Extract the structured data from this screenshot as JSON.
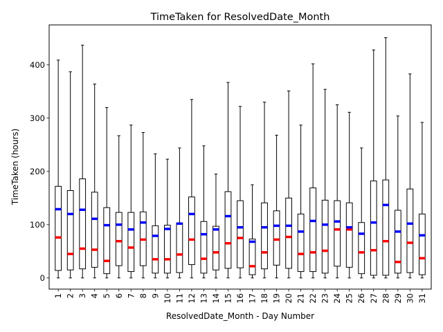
{
  "chart_data": {
    "type": "box",
    "title": "TimeTaken for ResolvedDate_Month",
    "xlabel": "ResolvedDate_Month - Day Number",
    "ylabel": "TimeTaken (hours)",
    "ylim": [
      -21,
      475
    ],
    "yticks": [
      0,
      100,
      200,
      300,
      400
    ],
    "grid": false,
    "median_color": "#ff0000",
    "mean_color": "#0000ff",
    "categories": [
      "1",
      "2",
      "3",
      "4",
      "5",
      "6",
      "7",
      "8",
      "9",
      "10",
      "11",
      "12",
      "13",
      "14",
      "15",
      "16",
      "17",
      "18",
      "19",
      "20",
      "21",
      "22",
      "23",
      "24",
      "25",
      "26",
      "27",
      "28",
      "29",
      "30",
      "31"
    ],
    "boxes": [
      {
        "whislo": 0,
        "q1": 14,
        "med": 76,
        "mean": 129,
        "q3": 172,
        "whishi": 409
      },
      {
        "whislo": 0,
        "q1": 15,
        "med": 45,
        "mean": 120,
        "q3": 164,
        "whishi": 387
      },
      {
        "whislo": 0,
        "q1": 17,
        "med": 55,
        "mean": 128,
        "q3": 186,
        "whishi": 437
      },
      {
        "whislo": 0,
        "q1": 20,
        "med": 53,
        "mean": 111,
        "q3": 161,
        "whishi": 364
      },
      {
        "whislo": 0,
        "q1": 8,
        "med": 32,
        "mean": 99,
        "q3": 132,
        "whishi": 320
      },
      {
        "whislo": 0,
        "q1": 23,
        "med": 69,
        "mean": 100,
        "q3": 123,
        "whishi": 267
      },
      {
        "whislo": 0,
        "q1": 12,
        "med": 57,
        "mean": 91,
        "q3": 123,
        "whishi": 287
      },
      {
        "whislo": 0,
        "q1": 23,
        "med": 72,
        "mean": 104,
        "q3": 124,
        "whishi": 273
      },
      {
        "whislo": 0,
        "q1": 9,
        "med": 35,
        "mean": 79,
        "q3": 98,
        "whishi": 233
      },
      {
        "whislo": 0,
        "q1": 9,
        "med": 35,
        "mean": 92,
        "q3": 99,
        "whishi": 223
      },
      {
        "whislo": 0,
        "q1": 10,
        "med": 44,
        "mean": 102,
        "q3": 103,
        "whishi": 244
      },
      {
        "whislo": 0,
        "q1": 25,
        "med": 72,
        "mean": 120,
        "q3": 152,
        "whishi": 335
      },
      {
        "whislo": 0,
        "q1": 9,
        "med": 36,
        "mean": 82,
        "q3": 106,
        "whishi": 248
      },
      {
        "whislo": 0,
        "q1": 15,
        "med": 48,
        "mean": 91,
        "q3": 97,
        "whishi": 195
      },
      {
        "whislo": 0,
        "q1": 18,
        "med": 65,
        "mean": 116,
        "q3": 162,
        "whishi": 367
      },
      {
        "whislo": 0,
        "q1": 19,
        "med": 75,
        "mean": 95,
        "q3": 145,
        "whishi": 322
      },
      {
        "whislo": 0,
        "q1": 6,
        "med": 22,
        "mean": 68,
        "q3": 73,
        "whishi": 175
      },
      {
        "whislo": 0,
        "q1": 17,
        "med": 48,
        "mean": 95,
        "q3": 141,
        "whishi": 330
      },
      {
        "whislo": 0,
        "q1": 24,
        "med": 72,
        "mean": 98,
        "q3": 126,
        "whishi": 268
      },
      {
        "whislo": 0,
        "q1": 18,
        "med": 77,
        "mean": 98,
        "q3": 150,
        "whishi": 351
      },
      {
        "whislo": 0,
        "q1": 12,
        "med": 45,
        "mean": 87,
        "q3": 120,
        "whishi": 287
      },
      {
        "whislo": 0,
        "q1": 12,
        "med": 48,
        "mean": 107,
        "q3": 169,
        "whishi": 402
      },
      {
        "whislo": 0,
        "q1": 9,
        "med": 51,
        "mean": 100,
        "q3": 146,
        "whishi": 354
      },
      {
        "whislo": 0,
        "q1": 22,
        "med": 91,
        "mean": 106,
        "q3": 145,
        "whishi": 325
      },
      {
        "whislo": 0,
        "q1": 20,
        "med": 91,
        "mean": 95,
        "q3": 141,
        "whishi": 311
      },
      {
        "whislo": 0,
        "q1": 8,
        "med": 48,
        "mean": 83,
        "q3": 104,
        "whishi": 244
      },
      {
        "whislo": 0,
        "q1": 5,
        "med": 52,
        "mean": 104,
        "q3": 182,
        "whishi": 428
      },
      {
        "whislo": 0,
        "q1": 5,
        "med": 69,
        "mean": 137,
        "q3": 184,
        "whishi": 451
      },
      {
        "whislo": 0,
        "q1": 9,
        "med": 30,
        "mean": 87,
        "q3": 127,
        "whishi": 304
      },
      {
        "whislo": 0,
        "q1": 10,
        "med": 66,
        "mean": 102,
        "q3": 167,
        "whishi": 383
      },
      {
        "whislo": 0,
        "q1": 6,
        "med": 37,
        "mean": 80,
        "q3": 120,
        "whishi": 292
      }
    ]
  }
}
